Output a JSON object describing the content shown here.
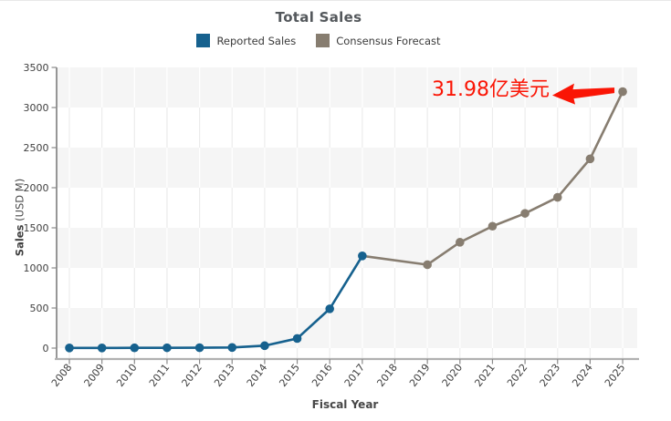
{
  "chart": {
    "title": "Total Sales",
    "x_axis_title": "Fiscal Year",
    "y_axis_title_bold": "Sales",
    "y_axis_title_unit": " (USD M)",
    "legend": [
      {
        "label": "Reported Sales",
        "color": "#16618e"
      },
      {
        "label": "Consensus Forecast",
        "color": "#877d70"
      }
    ],
    "annotation": {
      "text": "31.98亿美元",
      "color": "#fa1505"
    }
  },
  "chart_data": {
    "type": "line",
    "title": "Total Sales",
    "xlabel": "Fiscal Year",
    "ylabel": "Sales (USD M)",
    "x": [
      2008,
      2009,
      2010,
      2011,
      2012,
      2013,
      2014,
      2015,
      2016,
      2017,
      2018,
      2019,
      2020,
      2021,
      2022,
      2023,
      2024,
      2025
    ],
    "yticks": [
      0,
      500,
      1000,
      1500,
      2000,
      2500,
      3000,
      3500
    ],
    "ylim": [
      0,
      3500
    ],
    "grid": "alternating horizontal gray bands every 500 with vertical year gridlines",
    "legend_position": "top-center",
    "series": [
      {
        "name": "Reported Sales",
        "color": "#16618e",
        "points": [
          [
            2008,
            2
          ],
          [
            2009,
            2
          ],
          [
            2010,
            3
          ],
          [
            2011,
            4
          ],
          [
            2012,
            5
          ],
          [
            2013,
            8
          ],
          [
            2014,
            30
          ],
          [
            2015,
            120
          ],
          [
            2016,
            490
          ],
          [
            2017,
            1150
          ]
        ]
      },
      {
        "name": "Consensus Forecast",
        "color": "#877d70",
        "marker_start_index": 1,
        "points": [
          [
            2017,
            1150
          ],
          [
            2019,
            1040
          ],
          [
            2020,
            1320
          ],
          [
            2021,
            1520
          ],
          [
            2022,
            1680
          ],
          [
            2023,
            1880
          ],
          [
            2024,
            2360
          ],
          [
            2025,
            3198
          ]
        ]
      }
    ],
    "annotation": {
      "text": "31.98亿美元",
      "color": "#fa1505",
      "target": {
        "x": 2025,
        "y": 3198
      },
      "arrow": "red arrow, head pointing left toward label, tail at 2025 data point"
    }
  },
  "style_colors": {
    "band_gray": "#f5f5f5",
    "gridline_on_white": "#ececec",
    "gridline_on_gray": "#ffffff",
    "axis_left": "#6b6b6b",
    "axis_bottom": "#b0b0b0",
    "tick": "#8a8a8a",
    "tick_label": "#3f3f3f"
  }
}
